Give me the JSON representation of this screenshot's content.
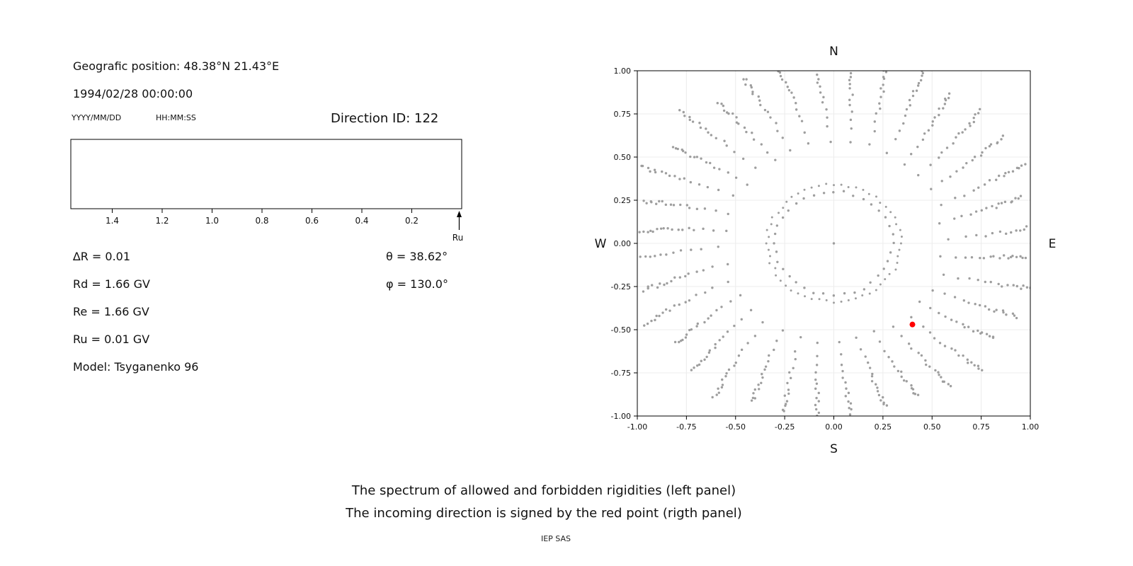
{
  "left_panel": {
    "geo_position": "Geografic position: 48.38°N 21.43°E",
    "datetime": "1994/02/28 00:00:00",
    "date_format_label": "YYYY/MM/DD",
    "time_format_label": "HH:MM:SS",
    "parameters": {
      "delta_r": "∆R = 0.01",
      "rd": "Rd = 1.66 GV",
      "re": "Re = 1.66 GV",
      "ru": "Ru = 0.01 GV",
      "model": "Model: Tsyganenko 96",
      "theta": "θ = 38.62°",
      "phi": "φ = 130.0°"
    }
  },
  "caption": {
    "line1": "The spectrum of allowed and forbidden rigidities (left panel)",
    "line2": "The incoming direction is signed by the red point (rigth panel)",
    "footer": "IEP SAS"
  },
  "chart_data": [
    {
      "panel": "left_spectrum",
      "type": "bar",
      "title": "Direction ID: 122",
      "x_tick_labels": [
        "1.4",
        "1.2",
        "1.0",
        "0.8",
        "0.6",
        "0.4",
        "0.2"
      ],
      "x_range": [
        1.566,
        0.0
      ],
      "x_axis_reversed": true,
      "bars": [],
      "arrow_marker": {
        "x": 0.01,
        "label": "Ru"
      },
      "box_color": "#000000",
      "fill": "#ffffff"
    },
    {
      "panel": "right_directions",
      "type": "scatter",
      "xlim": [
        -1.0,
        1.0
      ],
      "ylim": [
        -1.0,
        1.0
      ],
      "xtick_labels": [
        "-1.00",
        "-0.75",
        "-0.50",
        "-0.25",
        "0.00",
        "0.25",
        "0.50",
        "0.75",
        "1.00"
      ],
      "ytick_labels": [
        "-1.00",
        "-0.75",
        "-0.50",
        "-0.25",
        "0.00",
        "0.25",
        "0.50",
        "0.75",
        "1.00"
      ],
      "compass": {
        "top": "N",
        "bottom": "S",
        "left": "W",
        "right": "E"
      },
      "grid": true,
      "grid_color": "#ececec",
      "gray_points_pattern": {
        "n_spokes": 36,
        "points_per_spoke": 18,
        "spoke_inner_radius": 0.3,
        "spoke_outer_radius": 1.05,
        "outer_density_exponent": 0.35,
        "spoke_curl": 0.1,
        "jitter": 0.012,
        "inner_ring_radius": 0.34,
        "inner_ring_points": 56,
        "center_point": [
          0.0,
          0.0
        ],
        "color": "#9e9e9e",
        "dot_radius": 1.7
      },
      "red_point": {
        "x": 0.4,
        "y": -0.47,
        "color": "#ff0000",
        "radius": 4
      }
    }
  ]
}
